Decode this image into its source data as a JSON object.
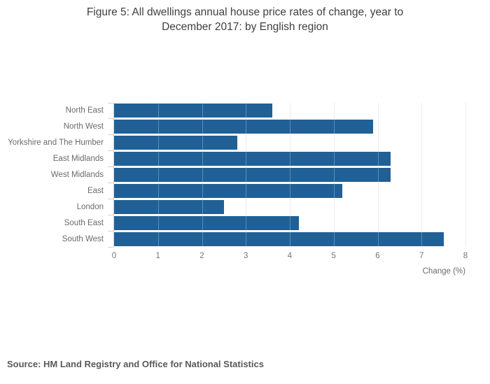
{
  "title": "Figure 5: All dwellings annual house price rates of change, year to December 2017: by English region",
  "source": "Source: HM Land Registry and Office for National Statistics",
  "xlabel": "Change (%)",
  "colors": {
    "bar": "#206095",
    "gridline": "#e7e7e7",
    "axis": "#c9d4e4",
    "title_text": "#3f3f3f",
    "label_text": "#6b6b6b",
    "source_text": "#595959"
  },
  "chart_data": {
    "type": "bar",
    "orientation": "horizontal",
    "title": "Figure 5: All dwellings annual house price rates of change, year to December 2017: by English region",
    "categories": [
      "North East",
      "North West",
      "Yorkshire and The Humber",
      "East Midlands",
      "West Midlands",
      "East",
      "London",
      "South East",
      "South West"
    ],
    "values": [
      3.6,
      5.9,
      2.8,
      6.3,
      6.3,
      5.2,
      2.5,
      4.2,
      7.5
    ],
    "xlabel": "Change (%)",
    "ylabel": "",
    "xlim": [
      0,
      8
    ],
    "x_ticks": [
      0,
      1,
      2,
      3,
      4,
      5,
      6,
      7,
      8
    ],
    "grid": true,
    "legend": "none",
    "bar_color": "#206095"
  }
}
